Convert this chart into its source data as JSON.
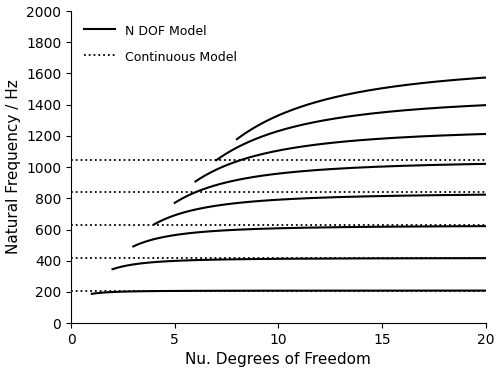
{
  "title": "",
  "xlabel": "Nu. Degrees of Freedom",
  "ylabel": "Natural Frequency / Hz",
  "xlim": [
    0,
    20
  ],
  "ylim": [
    0,
    2000
  ],
  "xticks": [
    0,
    5,
    10,
    15,
    20
  ],
  "yticks": [
    0,
    200,
    400,
    600,
    800,
    1000,
    1200,
    1400,
    1600,
    1800,
    2000
  ],
  "continuous_freqs": [
    209.0,
    418.0,
    628.0,
    838.0,
    1048.0
  ],
  "num_modes": 8,
  "f1_cont": 209.0,
  "line_color": "#000000",
  "dotted_color": "#000000",
  "background_color": "#ffffff",
  "legend_solid": "N DOF Model",
  "legend_dotted": "Continuous Model",
  "figsize": [
    5.0,
    3.73
  ],
  "dpi": 100
}
